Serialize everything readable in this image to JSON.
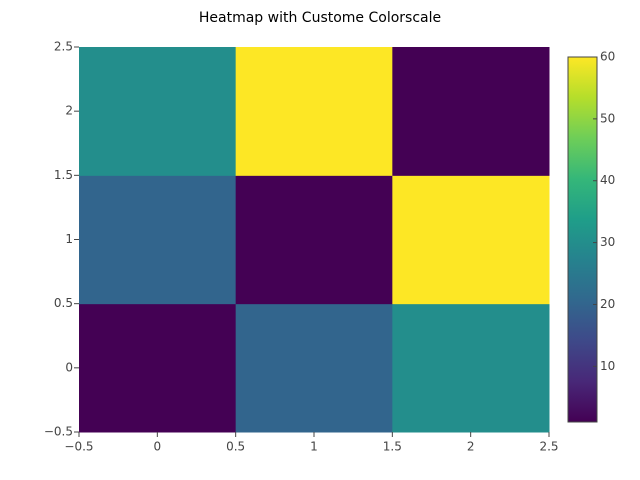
{
  "chart_data": {
    "type": "heatmap",
    "title": "Heatmap with Custome Colorscale",
    "x": [
      0,
      1,
      2
    ],
    "y": [
      0,
      1,
      2
    ],
    "z": [
      [
        1,
        20,
        30
      ],
      [
        20,
        1,
        60
      ],
      [
        30,
        60,
        1
      ]
    ],
    "xlim": [
      -0.5,
      2.5
    ],
    "ylim": [
      -0.5,
      2.5
    ],
    "xticks": [
      {
        "value": -0.5,
        "label": "−0.5"
      },
      0,
      0.5,
      1,
      1.5,
      2,
      2.5
    ],
    "yticks": [
      {
        "value": -0.5,
        "label": "−0.5"
      },
      0,
      0.5,
      1,
      1.5,
      2,
      2.5
    ],
    "zlim": [
      1,
      60
    ],
    "colorbar_ticks": [
      10,
      20,
      30,
      40,
      50,
      60
    ],
    "colorscale": [
      "#440154",
      "#482878",
      "#3e4989",
      "#31688e",
      "#26828e",
      "#1f9e89",
      "#35b779",
      "#6ece58",
      "#b5de2b",
      "#fde725"
    ]
  }
}
